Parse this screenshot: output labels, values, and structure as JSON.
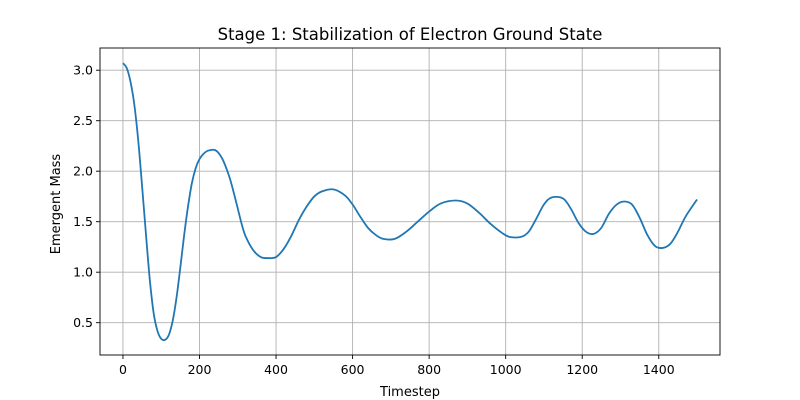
{
  "chart_data": {
    "type": "line",
    "title": "Stage 1: Stabilization of Electron Ground State",
    "xlabel": "Timestep",
    "ylabel": "Emergent Mass",
    "xlim": [
      -60,
      1560
    ],
    "ylim": [
      0.18,
      3.22
    ],
    "xticks": [
      0,
      200,
      400,
      600,
      800,
      1000,
      1200,
      1400
    ],
    "yticks": [
      0.5,
      1.0,
      1.5,
      2.0,
      2.5,
      3.0
    ],
    "xtick_labels": [
      "0",
      "200",
      "400",
      "600",
      "800",
      "1000",
      "1200",
      "1400"
    ],
    "ytick_labels": [
      "0.5",
      "1.0",
      "1.5",
      "2.0",
      "2.5",
      "3.0"
    ],
    "grid": true,
    "series": [
      {
        "color": "#1f77b4",
        "x": [
          0,
          10,
          20,
          30,
          40,
          50,
          60,
          70,
          80,
          90,
          100,
          110,
          120,
          130,
          140,
          150,
          160,
          170,
          180,
          190,
          200,
          210,
          220,
          230,
          240,
          250,
          260,
          270,
          280,
          290,
          300,
          310,
          320,
          340,
          360,
          380,
          400,
          420,
          440,
          460,
          480,
          500,
          520,
          550,
          580,
          600,
          620,
          640,
          660,
          680,
          710,
          740,
          770,
          800,
          830,
          870,
          900,
          930,
          960,
          990,
          1010,
          1040,
          1060,
          1080,
          1100,
          1120,
          1150,
          1170,
          1190,
          1210,
          1230,
          1250,
          1270,
          1290,
          1310,
          1330,
          1350,
          1370,
          1390,
          1410,
          1430,
          1450,
          1470,
          1500
        ],
        "y": [
          3.07,
          3.02,
          2.88,
          2.65,
          2.3,
          1.85,
          1.38,
          0.93,
          0.6,
          0.42,
          0.34,
          0.33,
          0.38,
          0.52,
          0.75,
          1.05,
          1.37,
          1.65,
          1.88,
          2.03,
          2.12,
          2.17,
          2.2,
          2.21,
          2.21,
          2.18,
          2.12,
          2.03,
          1.92,
          1.78,
          1.63,
          1.48,
          1.36,
          1.22,
          1.15,
          1.14,
          1.15,
          1.23,
          1.36,
          1.52,
          1.65,
          1.75,
          1.8,
          1.82,
          1.76,
          1.67,
          1.55,
          1.44,
          1.37,
          1.33,
          1.33,
          1.4,
          1.5,
          1.6,
          1.68,
          1.71,
          1.68,
          1.59,
          1.48,
          1.39,
          1.35,
          1.35,
          1.4,
          1.53,
          1.67,
          1.74,
          1.73,
          1.63,
          1.49,
          1.4,
          1.38,
          1.44,
          1.58,
          1.67,
          1.7,
          1.67,
          1.54,
          1.37,
          1.26,
          1.24,
          1.28,
          1.4,
          1.55,
          1.72
        ]
      }
    ]
  }
}
